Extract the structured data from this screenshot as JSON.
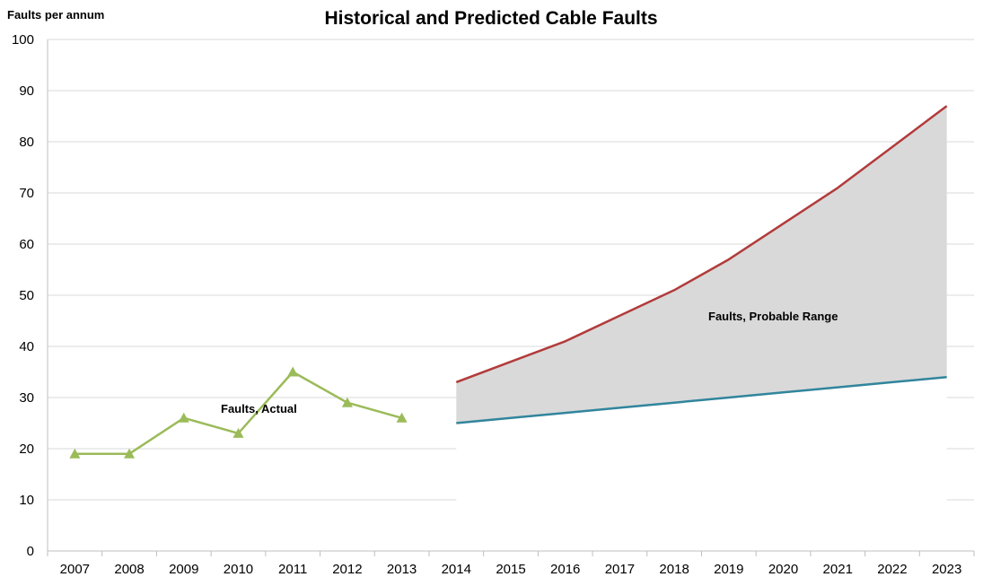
{
  "chart_data": {
    "type": "line",
    "title": "Historical and Predicted Cable Faults",
    "ylabel": "Faults per annum",
    "xlabel": "",
    "ylim": [
      0,
      100
    ],
    "yticks": [
      0,
      10,
      20,
      30,
      40,
      50,
      60,
      70,
      80,
      90,
      100
    ],
    "categories": [
      "2007",
      "2008",
      "2009",
      "2010",
      "2011",
      "2012",
      "2013",
      "2014",
      "2015",
      "2016",
      "2017",
      "2018",
      "2019",
      "2020",
      "2021",
      "2022",
      "2023"
    ],
    "grid": true,
    "series": [
      {
        "name": "Faults, Actual",
        "color": "#9bbb59",
        "marker": "triangle",
        "values": [
          19,
          19,
          26,
          23,
          35,
          29,
          26,
          null,
          null,
          null,
          null,
          null,
          null,
          null,
          null,
          null,
          null
        ]
      },
      {
        "name": "",
        "color": "#b23b3b",
        "marker": "none",
        "values": [
          null,
          null,
          null,
          null,
          null,
          null,
          null,
          33,
          37,
          41,
          46,
          51,
          57,
          64,
          71,
          79,
          87
        ]
      },
      {
        "name": "",
        "color": "#31859c",
        "marker": "none",
        "values": [
          null,
          null,
          null,
          null,
          null,
          null,
          null,
          25,
          26,
          27,
          28,
          29,
          30,
          31,
          32,
          33,
          34
        ]
      }
    ],
    "range_band": {
      "name": "Faults, Probable Range",
      "color": "#d9d9d9"
    },
    "annotations": [
      "Faults, Actual",
      "Faults, Probable Range"
    ]
  }
}
